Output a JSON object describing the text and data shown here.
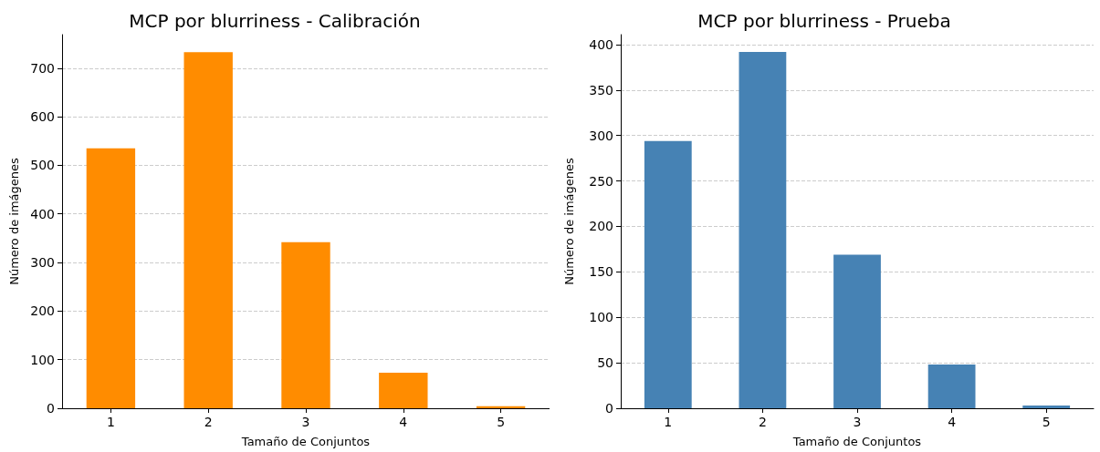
{
  "chart_data": [
    {
      "type": "bar",
      "title": "MCP por blurriness - Calibración",
      "xlabel": "Tamaño de Conjuntos",
      "ylabel": "Número de imágenes",
      "categories": [
        "1",
        "2",
        "3",
        "4",
        "5"
      ],
      "values": [
        535,
        733,
        342,
        73,
        4
      ],
      "color": "#ff8c00",
      "ylim": [
        0,
        769
      ],
      "yticks": [
        0,
        100,
        200,
        300,
        400,
        500,
        600,
        700
      ],
      "grid": "y"
    },
    {
      "type": "bar",
      "title": "MCP por blurriness - Prueba",
      "xlabel": "Tamaño de Conjuntos",
      "ylabel": "Número de imágenes",
      "categories": [
        "1",
        "2",
        "3",
        "4",
        "5"
      ],
      "values": [
        294,
        392,
        169,
        48,
        3
      ],
      "color": "#4682b4",
      "ylim": [
        0,
        411
      ],
      "yticks": [
        0,
        50,
        100,
        150,
        200,
        250,
        300,
        350,
        400
      ],
      "grid": "y"
    }
  ]
}
